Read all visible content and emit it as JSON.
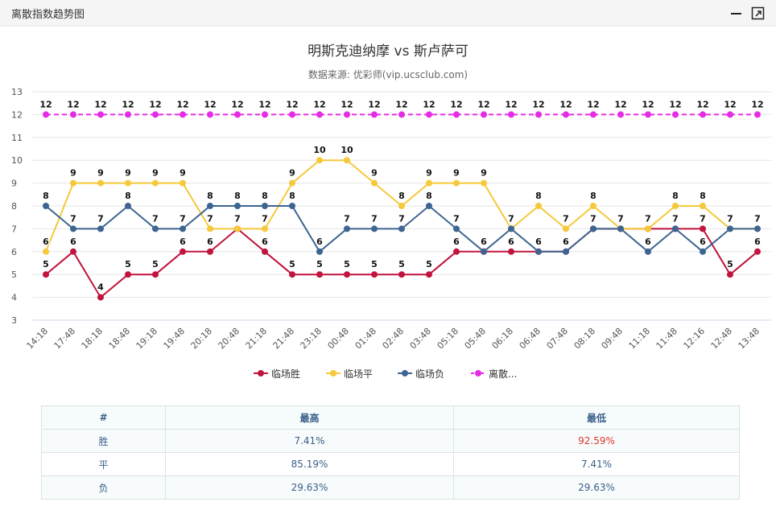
{
  "window": {
    "title": "离散指数趋势图"
  },
  "chart_data": {
    "type": "line",
    "title": "明斯克迪纳摩 vs 斯卢萨可",
    "subtitle": "数据来源: 优彩师(vip.ucsclub.com)",
    "categories": [
      "14:18",
      "17:48",
      "18:18",
      "18:48",
      "19:18",
      "19:48",
      "20:18",
      "20:48",
      "21:18",
      "21:48",
      "23:18",
      "00:48",
      "01:48",
      "02:48",
      "03:48",
      "05:18",
      "05:48",
      "06:18",
      "06:48",
      "07:48",
      "08:18",
      "09:48",
      "11:18",
      "11:48",
      "12:16",
      "12:48",
      "13:48"
    ],
    "ylim": [
      3,
      13
    ],
    "yticks": [
      3,
      4,
      5,
      6,
      7,
      8,
      9,
      10,
      11,
      12,
      13
    ],
    "series": [
      {
        "name": "临场胜",
        "color": "#c0143c",
        "values": [
          5,
          6,
          4,
          5,
          5,
          6,
          6,
          7,
          6,
          5,
          5,
          5,
          5,
          5,
          5,
          6,
          6,
          6,
          6,
          6,
          7,
          7,
          7,
          7,
          7,
          5,
          6
        ]
      },
      {
        "name": "临场平",
        "color": "#f5c93a",
        "values": [
          6,
          9,
          9,
          9,
          9,
          9,
          7,
          7,
          7,
          9,
          10,
          10,
          9,
          8,
          9,
          9,
          9,
          7,
          8,
          7,
          8,
          7,
          7,
          8,
          8,
          7,
          7
        ]
      },
      {
        "name": "临场负",
        "color": "#3d6591",
        "values": [
          8,
          7,
          7,
          8,
          7,
          7,
          8,
          8,
          8,
          8,
          6,
          7,
          7,
          7,
          8,
          7,
          6,
          7,
          6,
          6,
          7,
          7,
          6,
          7,
          6,
          7,
          7
        ]
      },
      {
        "name": "离散...",
        "color": "#e62be6",
        "dashed": true,
        "values": [
          12,
          12,
          12,
          12,
          12,
          12,
          12,
          12,
          12,
          12,
          12,
          12,
          12,
          12,
          12,
          12,
          12,
          12,
          12,
          12,
          12,
          12,
          12,
          12,
          12,
          12,
          12
        ]
      }
    ]
  },
  "table": {
    "headers": [
      "#",
      "最高",
      "最低"
    ],
    "rows": [
      {
        "label": "胜",
        "high": "7.41%",
        "low": "92.59%"
      },
      {
        "label": "平",
        "high": "85.19%",
        "low": "7.41%"
      },
      {
        "label": "负",
        "high": "29.63%",
        "low": "29.63%"
      }
    ]
  }
}
